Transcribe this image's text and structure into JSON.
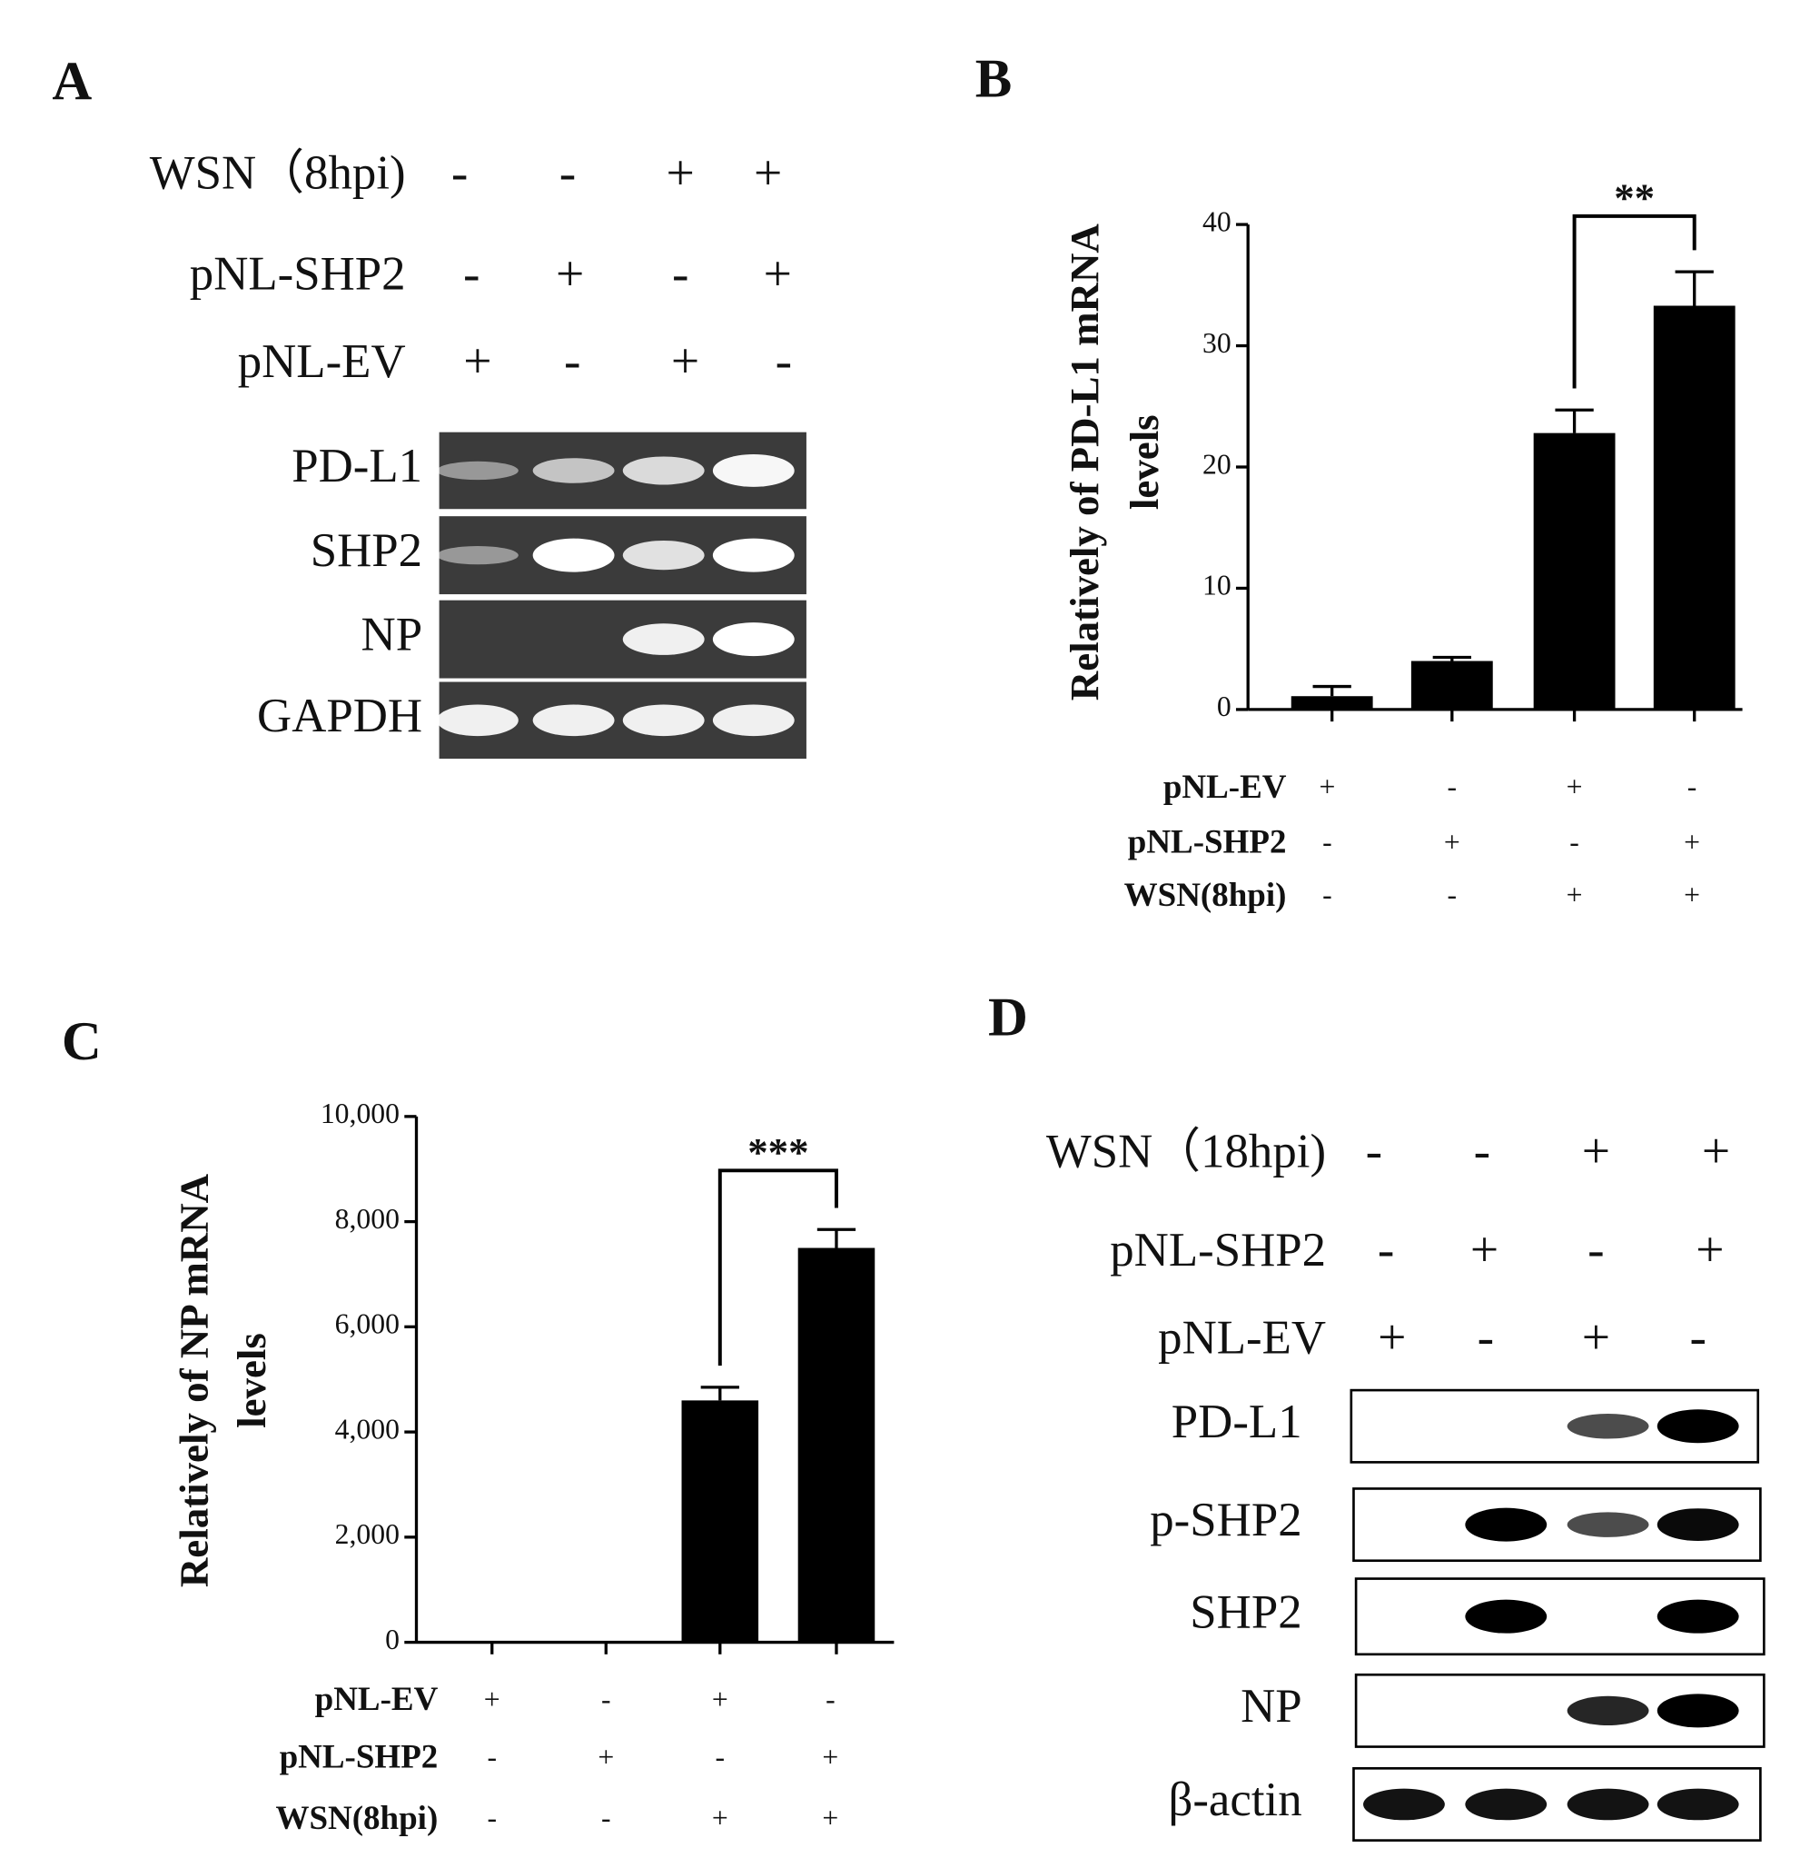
{
  "panel_a": {
    "label": "A",
    "conditions": [
      {
        "name": "WSN（8hpi)",
        "signs": [
          "-",
          "-",
          "+",
          "+"
        ]
      },
      {
        "name": "pNL-SHP2",
        "signs": [
          "-",
          "+",
          "-",
          "+"
        ]
      },
      {
        "name": "pNL-EV",
        "signs": [
          "+",
          "-",
          "+",
          "-"
        ]
      }
    ],
    "blot_rows": [
      "PD-L1",
      "SHP2",
      "NP",
      "GAPDH"
    ]
  },
  "chart_data": [
    {
      "panel": "B",
      "type": "bar",
      "y_label": [
        "Relatively of PD-L1 mRNA",
        "levels"
      ],
      "values": [
        1.1,
        4.0,
        22.8,
        33.3
      ],
      "errors": [
        0.8,
        0.3,
        1.9,
        2.8
      ],
      "color": "#000000",
      "ylim": [
        0,
        40
      ],
      "yticks": [
        0,
        10,
        20,
        30,
        40
      ],
      "grid": false,
      "significance": "**",
      "conditions": [
        {
          "name": "pNL-EV",
          "signs": [
            "+",
            "-",
            "+",
            "-"
          ]
        },
        {
          "name": "pNL-SHP2",
          "signs": [
            "-",
            "+",
            "-",
            "+"
          ]
        },
        {
          "name": "WSN(8hpi)",
          "signs": [
            "-",
            "-",
            "+",
            "+"
          ]
        }
      ]
    },
    {
      "panel": "C",
      "type": "bar",
      "y_label": [
        "Relatively of NP mRNA",
        "levels"
      ],
      "values": [
        0,
        0,
        4600,
        7500
      ],
      "errors": [
        null,
        null,
        250,
        350
      ],
      "color": "#000000",
      "ylim": [
        0,
        10000
      ],
      "yticks": [
        0,
        {
          "value": 2000,
          "label": "2,000"
        },
        {
          "value": 4000,
          "label": "4,000"
        },
        {
          "value": 6000,
          "label": "6,000"
        },
        {
          "value": 8000,
          "label": "8,000"
        },
        {
          "value": 10000,
          "label": "10,000"
        }
      ],
      "grid": false,
      "significance": "***",
      "conditions": [
        {
          "name": "pNL-EV",
          "signs": [
            "+",
            "-",
            "+",
            "-"
          ]
        },
        {
          "name": "pNL-SHP2",
          "signs": [
            "-",
            "+",
            "-",
            "+"
          ]
        },
        {
          "name": "WSN(8hpi)",
          "signs": [
            "-",
            "-",
            "+",
            "+"
          ]
        }
      ]
    }
  ],
  "panel_d": {
    "label": "D",
    "conditions": [
      {
        "name": "WSN（18hpi)",
        "signs": [
          "-",
          "-",
          "+",
          "+"
        ]
      },
      {
        "name": "pNL-SHP2",
        "signs": [
          "-",
          "+",
          "-",
          "+"
        ]
      },
      {
        "name": "pNL-EV",
        "signs": [
          "+",
          "-",
          "+",
          "-"
        ]
      }
    ],
    "blot_rows": [
      "PD-L1",
      "p-SHP2",
      "SHP2",
      "NP",
      "β-actin"
    ]
  }
}
